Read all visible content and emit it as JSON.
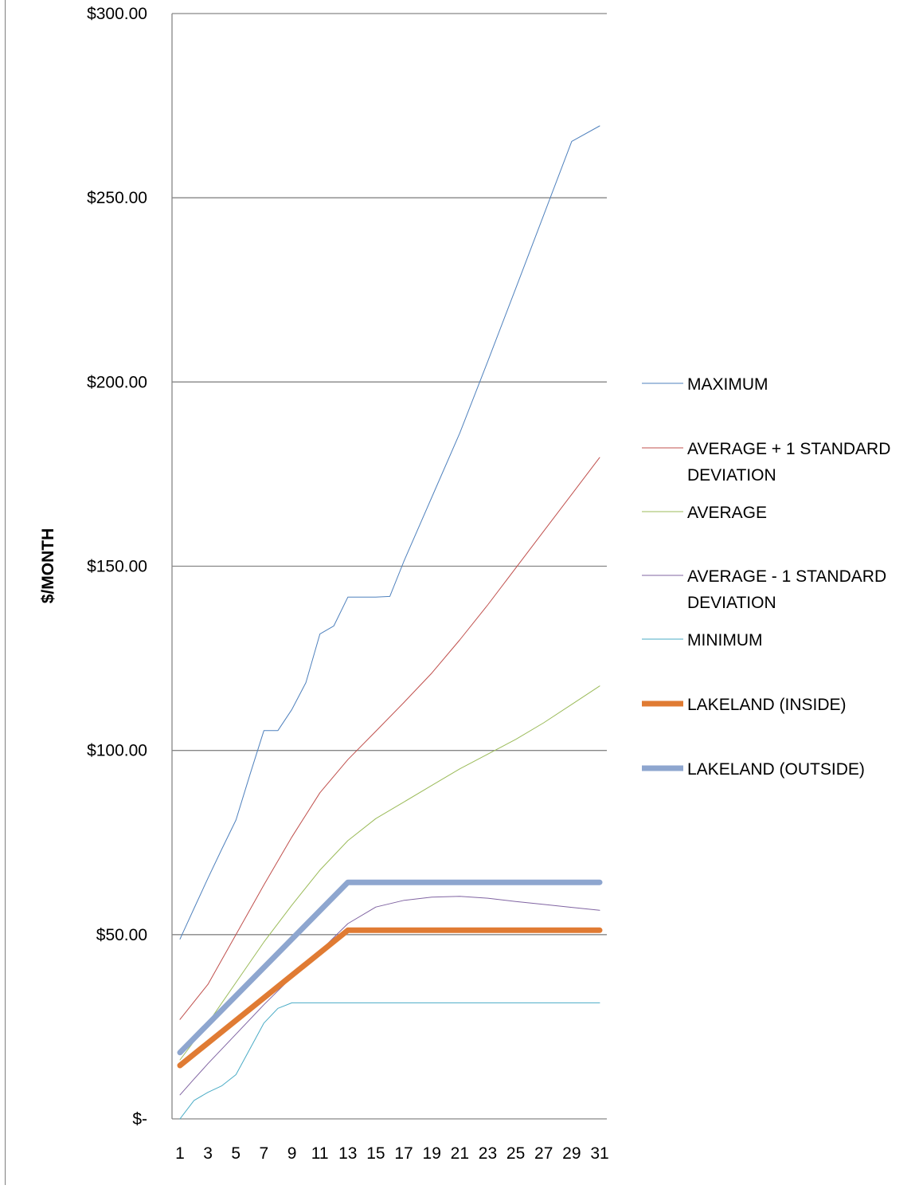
{
  "chart_data": {
    "type": "line",
    "title": "",
    "xlabel": "",
    "ylabel": "$/MONTH",
    "ylim": [
      0,
      300
    ],
    "xlim": [
      1,
      31
    ],
    "grid": true,
    "legend_position": "right",
    "x_tick_labels": [
      "1",
      "3",
      "5",
      "7",
      "9",
      "11",
      "13",
      "15",
      "17",
      "19",
      "21",
      "23",
      "25",
      "27",
      "29",
      "31"
    ],
    "y_tick_labels": [
      "$-",
      "$50.00",
      "$100.00",
      "$150.00",
      "$200.00",
      "$250.00",
      "$300.00"
    ],
    "y_ticks": [
      0,
      50,
      100,
      150,
      200,
      250,
      300
    ],
    "series": [
      {
        "name": "MAXIMUM",
        "color": "#4f81bd",
        "width": 1,
        "points": [
          [
            1,
            48.8
          ],
          [
            2,
            57.1
          ],
          [
            3,
            65.3
          ],
          [
            4,
            73.3
          ],
          [
            5,
            81.1
          ],
          [
            6,
            93.4
          ],
          [
            7,
            105.4
          ],
          [
            8,
            105.4
          ],
          [
            9,
            111.1
          ],
          [
            10,
            118.4
          ],
          [
            11,
            131.6
          ],
          [
            12,
            133.8
          ],
          [
            13,
            141.6
          ],
          [
            14,
            141.6
          ],
          [
            15,
            141.6
          ],
          [
            16,
            141.8
          ],
          [
            17,
            151.3
          ],
          [
            19,
            168.7
          ],
          [
            21,
            186.1
          ],
          [
            23,
            205.6
          ],
          [
            25,
            225.4
          ],
          [
            27,
            245.3
          ],
          [
            29,
            265.3
          ],
          [
            31,
            269.5
          ]
        ]
      },
      {
        "name": "AVERAGE + 1 STANDARD DEVIATION",
        "color": "#c0504d",
        "width": 1,
        "points": [
          [
            1,
            27
          ],
          [
            3,
            36.5
          ],
          [
            5,
            50
          ],
          [
            7,
            63.5
          ],
          [
            9,
            76.5
          ],
          [
            11,
            88.5
          ],
          [
            13,
            97.5
          ],
          [
            15,
            105.2
          ],
          [
            17,
            113
          ],
          [
            19,
            121
          ],
          [
            21,
            130
          ],
          [
            23,
            139.5
          ],
          [
            25,
            149.5
          ],
          [
            27,
            159.5
          ],
          [
            29,
            169.5
          ],
          [
            31,
            179.5
          ]
        ]
      },
      {
        "name": "AVERAGE",
        "color": "#9bbb59",
        "width": 1,
        "points": [
          [
            1,
            16
          ],
          [
            3,
            26
          ],
          [
            5,
            37
          ],
          [
            7,
            48
          ],
          [
            9,
            58
          ],
          [
            11,
            67.5
          ],
          [
            13,
            75.5
          ],
          [
            15,
            81.5
          ],
          [
            17,
            86
          ],
          [
            19,
            90.5
          ],
          [
            21,
            95
          ],
          [
            23,
            99
          ],
          [
            25,
            103
          ],
          [
            27,
            107.5
          ],
          [
            29,
            112.5
          ],
          [
            31,
            117.5
          ]
        ]
      },
      {
        "name": "AVERAGE - 1 STANDARD DEVIATION",
        "color": "#8064a2",
        "width": 1,
        "points": [
          [
            1,
            6.5
          ],
          [
            2,
            10.8
          ],
          [
            3,
            15
          ],
          [
            5,
            23
          ],
          [
            7,
            31
          ],
          [
            9,
            38.5
          ],
          [
            11,
            45.5
          ],
          [
            13,
            53
          ],
          [
            15,
            57.5
          ],
          [
            17,
            59.3
          ],
          [
            19,
            60.2
          ],
          [
            21,
            60.4
          ],
          [
            23,
            59.9
          ],
          [
            25,
            59
          ],
          [
            27,
            58.2
          ],
          [
            29,
            57.4
          ],
          [
            31,
            56.6
          ]
        ]
      },
      {
        "name": "MINIMUM",
        "color": "#4bacc6",
        "width": 1,
        "points": [
          [
            1,
            0
          ],
          [
            2,
            5
          ],
          [
            3,
            7.2
          ],
          [
            4,
            9
          ],
          [
            5,
            12
          ],
          [
            6,
            19
          ],
          [
            7,
            26
          ],
          [
            8,
            30
          ],
          [
            9,
            31.5
          ],
          [
            11,
            31.5
          ],
          [
            13,
            31.5
          ],
          [
            31,
            31.5
          ]
        ]
      },
      {
        "name": "LAKELAND (INSIDE)",
        "color": "#e07b33",
        "width": 7,
        "points": [
          [
            1,
            14.5
          ],
          [
            13,
            51.2
          ],
          [
            31,
            51.2
          ]
        ]
      },
      {
        "name": "LAKELAND (OUTSIDE)",
        "color": "#8ea6cf",
        "width": 7,
        "points": [
          [
            1,
            18
          ],
          [
            13,
            64.2
          ],
          [
            31,
            64.2
          ]
        ]
      }
    ]
  }
}
